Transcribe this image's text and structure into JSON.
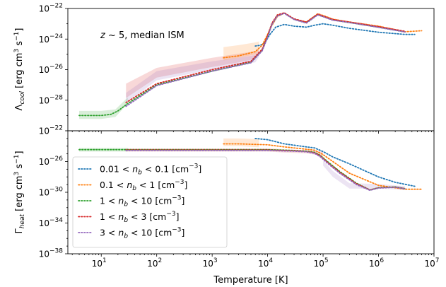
{
  "chart_data": {
    "type": "line",
    "xlabel": "Temperature [K]",
    "x_scale": "log",
    "xlim": [
      2.5,
      10000000
    ],
    "x_ticks": [
      {
        "value": 10,
        "label": "10",
        "exp": "1"
      },
      {
        "value": 100,
        "label": "10",
        "exp": "2"
      },
      {
        "value": 1000,
        "label": "10",
        "exp": "3"
      },
      {
        "value": 10000,
        "label": "10",
        "exp": "4"
      },
      {
        "value": 100000,
        "label": "10",
        "exp": "5"
      },
      {
        "value": 1000000,
        "label": "10",
        "exp": "6"
      },
      {
        "value": 10000000,
        "label": "10",
        "exp": "7"
      }
    ],
    "legend_placement": "lower-left of bottom panel",
    "series_legend": [
      {
        "label_pre": "0.01 < ",
        "var": "n",
        "sub": "b",
        "label_post": " < 0.1 [cm",
        "sup": "−3",
        "close": "]",
        "color": "#1f77b4"
      },
      {
        "label_pre": "0.1 < ",
        "var": "n",
        "sub": "b",
        "label_post": " < 1 [cm",
        "sup": "−3",
        "close": "]",
        "color": "#ff7f0e"
      },
      {
        "label_pre": "1 < ",
        "var": "n",
        "sub": "b",
        "label_post": " < 10 [cm",
        "sup": "−3",
        "close": "]",
        "color": "#2ca02c"
      },
      {
        "label_pre": "1 < ",
        "var": "n",
        "sub": "b",
        "label_post": " < 3 [cm",
        "sup": "−3",
        "close": "]",
        "color": "#d62728"
      },
      {
        "label_pre": "3 < ",
        "var": "n",
        "sub": "b",
        "label_post": " < 10 [cm",
        "sup": "−3",
        "close": "]",
        "color": "#9467bd"
      }
    ],
    "panels": [
      {
        "id": "cooling",
        "ylabel_symbol": "Λ",
        "ylabel_sub": "cool",
        "ylabel_units": " [erg cm",
        "ylabel_sup1": "3",
        "ylabel_mid": " s",
        "ylabel_sup2": "−1",
        "ylabel_close": "]",
        "y_scale": "log",
        "ylim": [
          1e-22,
          1e-30
        ],
        "y_ticks": [
          {
            "value": 1e-22,
            "label": "10",
            "exp": "−22"
          },
          {
            "value": 1e-24,
            "label": "10",
            "exp": "−24"
          },
          {
            "value": 1e-26,
            "label": "10",
            "exp": "−26"
          },
          {
            "value": 1e-28,
            "label": "10",
            "exp": "−28"
          }
        ],
        "annotation": {
          "pre": "z",
          "mid": " ~ 5, median ISM"
        },
        "bands": [
          {
            "color": "#2ca02c",
            "x": [
              4,
              10,
              18,
              30
            ],
            "lo": [
              6e-30,
              6e-30,
              8e-30,
              6e-29
            ],
            "hi": [
              2e-29,
              2e-29,
              2.5e-29,
              1.5e-28
            ]
          },
          {
            "color": "#d62728",
            "x": [
              28,
              100,
              1000,
              3000,
              6000,
              7000
            ],
            "lo": [
              1.4e-28,
              3e-27,
              1.5e-26,
              3e-26,
              5e-26,
              1e-25
            ],
            "hi": [
              1.2e-27,
              1.3e-26,
              6e-26,
              1.1e-25,
              1.6e-25,
              2.5e-25
            ]
          },
          {
            "color": "#9467bd",
            "x": [
              28,
              100,
              1000,
              3000,
              6000,
              7000
            ],
            "lo": [
              6e-29,
              2e-27,
              1e-26,
              2e-26,
              3e-26,
              7e-26
            ],
            "hi": [
              3e-28,
              8e-27,
              3.5e-26,
              6e-26,
              9e-26,
              1.6e-25
            ]
          },
          {
            "color": "#ff7f0e",
            "x": [
              1600,
              3000,
              6000,
              7000
            ],
            "lo": [
              4e-26,
              6e-26,
              1e-25,
              1.5e-25
            ],
            "hi": [
              3e-25,
              4e-25,
              6e-25,
              7e-25
            ]
          }
        ],
        "series": [
          {
            "color": "#1f77b4",
            "x": [
              6000,
              7500,
              9000,
              11000,
              14000,
              20000,
              30000,
              50000,
              70000,
              100000,
              150000,
              300000,
              1000000,
              3000000,
              4500000
            ],
            "y": [
              3.5e-25,
              4e-25,
              6e-25,
              2e-24,
              6e-24,
              9e-24,
              7e-24,
              6e-24,
              8e-24,
              1e-23,
              8e-24,
              5e-24,
              2.8e-24,
              2e-24,
              2e-24
            ]
          },
          {
            "color": "#ff7f0e",
            "x": [
              1600,
              3000,
              6000,
              8000,
              10000,
              12000,
              15000,
              20000,
              30000,
              50000,
              80000,
              100000,
              150000,
              300000,
              1000000,
              3000000,
              6000000
            ],
            "y": [
              6e-26,
              8e-26,
              1.5e-25,
              4e-25,
              2e-24,
              8e-24,
              3e-23,
              5e-23,
              2e-23,
              1.3e-23,
              4.5e-23,
              3.5e-23,
              2e-23,
              1.3e-23,
              7e-24,
              3e-24,
              3.5e-24
            ]
          },
          {
            "color": "#2ca02c",
            "x": [
              4,
              10,
              15,
              20,
              30,
              100,
              1000,
              5000,
              8000,
              10000,
              12000,
              15000,
              20000,
              30000,
              50000,
              80000,
              100000,
              150000,
              300000,
              1000000,
              3000000
            ],
            "y": [
              1e-29,
              1e-29,
              1.2e-29,
              2e-29,
              6e-29,
              1e-27,
              8e-27,
              3e-26,
              2e-25,
              1.5e-24,
              1e-23,
              3.5e-23,
              5e-23,
              2e-23,
              1.2e-23,
              4e-23,
              3e-23,
              1.8e-23,
              1.2e-23,
              6e-24,
              3e-24
            ]
          },
          {
            "color": "#d62728",
            "x": [
              28,
              100,
              1000,
              5000,
              8000,
              10000,
              12000,
              15000,
              20000,
              30000,
              50000,
              80000,
              100000,
              150000,
              300000,
              1000000,
              3000000
            ],
            "y": [
              7e-29,
              1.2e-27,
              1e-26,
              3.5e-26,
              2.2e-25,
              1.7e-24,
              1.1e-23,
              3.8e-23,
              5.2e-23,
              2.1e-23,
              1.3e-23,
              4.2e-23,
              3.2e-23,
              1.9e-23,
              1.3e-23,
              6.5e-24,
              3.2e-24
            ]
          },
          {
            "color": "#9467bd",
            "x": [
              28,
              100,
              1000,
              5000,
              8000,
              10000,
              12000,
              15000,
              20000,
              30000,
              50000,
              80000,
              100000,
              150000,
              300000,
              1000000,
              3000000
            ],
            "y": [
              4e-29,
              9e-28,
              8e-27,
              2.8e-26,
              1.7e-25,
              1.3e-24,
              9e-24,
              3.2e-23,
              4.8e-23,
              1.9e-23,
              1.1e-23,
              3.8e-23,
              2.9e-23,
              1.7e-23,
              1.2e-23,
              5.8e-24,
              2.9e-24
            ]
          }
        ]
      },
      {
        "id": "heating",
        "ylabel_symbol": "Γ",
        "ylabel_sub": "heat",
        "ylabel_units": " [erg cm",
        "ylabel_sup1": "3",
        "ylabel_mid": " s",
        "ylabel_sup2": "−1",
        "ylabel_close": "]",
        "y_scale": "log",
        "ylim": [
          1e-22,
          1e-38
        ],
        "y_ticks": [
          {
            "value": 1e-22,
            "label": "10",
            "exp": "−22"
          },
          {
            "value": 1e-26,
            "label": "10",
            "exp": "−26"
          },
          {
            "value": 1e-30,
            "label": "10",
            "exp": "−30"
          },
          {
            "value": 1e-34,
            "label": "10",
            "exp": "−34"
          },
          {
            "value": 1e-38,
            "label": "10",
            "exp": "−38"
          }
        ],
        "bands": [
          {
            "color": "#2ca02c",
            "x": [
              4,
              30
            ],
            "lo": [
              2e-25,
              2e-25
            ],
            "hi": [
              6e-25,
              6e-25
            ]
          },
          {
            "color": "#d62728",
            "x": [
              28,
              100,
              1000,
              3000,
              7000,
              10000,
              20000,
              50000,
              100000
            ],
            "lo": [
              2e-25,
              2e-25,
              2e-25,
              2e-25,
              2e-25,
              2e-25,
              1.5e-25,
              1.2e-25,
              5e-26
            ],
            "hi": [
              5e-25,
              5e-25,
              5e-25,
              5e-25,
              5e-25,
              5e-25,
              4e-25,
              3e-25,
              2e-25
            ]
          },
          {
            "color": "#9467bd",
            "x": [
              100000,
              150000,
              300000,
              1000000,
              3000000
            ],
            "lo": [
              3e-27,
              1e-28,
              3e-30,
              3e-30,
              2e-30
            ],
            "hi": [
              1.5e-26,
              6e-28,
              1.5e-29,
              1.2e-29,
              6e-30
            ]
          },
          {
            "color": "#ff7f0e",
            "x": [
              1600,
              3000,
              7000
            ],
            "lo": [
              1e-24,
              1e-24,
              7e-25
            ],
            "hi": [
              1e-23,
              1e-23,
              8e-24
            ]
          }
        ],
        "series": [
          {
            "color": "#1f77b4",
            "x": [
              6000,
              10000,
              20000,
              50000,
              70000,
              100000,
              150000,
              300000,
              1000000,
              2000000,
              4500000
            ],
            "y": [
              1e-23,
              7e-24,
              2e-24,
              8e-25,
              6e-25,
              2e-25,
              4e-26,
              5e-27,
              1e-28,
              2e-29,
              6e-30
            ]
          },
          {
            "color": "#ff7f0e",
            "x": [
              1600,
              3000,
              10000,
              20000,
              50000,
              70000,
              100000,
              150000,
              300000,
              1000000,
              3000000,
              6000000
            ],
            "y": [
              2e-24,
              2e-24,
              1.5e-24,
              8e-25,
              4e-25,
              3e-25,
              8e-26,
              1e-26,
              3e-28,
              8e-30,
              2.5e-30,
              2.5e-30
            ]
          },
          {
            "color": "#2ca02c",
            "x": [
              4,
              30,
              100,
              1000,
              5000,
              10000,
              30000,
              50000,
              70000,
              90000,
              120000,
              200000,
              400000,
              700000,
              1000000,
              2000000,
              3000000
            ],
            "y": [
              3.5e-25,
              3.5e-25,
              3.5e-25,
              3.5e-25,
              3.5e-25,
              3.5e-25,
              2.7e-25,
              2.2e-25,
              1.6e-25,
              6e-26,
              1e-26,
              5e-28,
              1.5e-29,
              2e-30,
              4e-30,
              5e-30,
              3e-30
            ]
          },
          {
            "color": "#d62728",
            "x": [
              28,
              100,
              1000,
              5000,
              10000,
              30000,
              50000,
              70000,
              90000,
              120000,
              200000,
              400000,
              700000,
              1000000,
              2000000,
              3000000
            ],
            "y": [
              3.2e-25,
              3.2e-25,
              3.2e-25,
              3.2e-25,
              3.2e-25,
              2.5e-25,
              2e-25,
              1.4e-25,
              5e-26,
              8e-27,
              4e-28,
              1.3e-29,
              2e-30,
              3.8e-30,
              4.8e-30,
              3e-30
            ]
          },
          {
            "color": "#9467bd",
            "x": [
              28,
              100,
              1000,
              5000,
              10000,
              30000,
              50000,
              70000,
              90000,
              120000,
              200000,
              400000,
              700000,
              1000000,
              2000000,
              3000000
            ],
            "y": [
              2.8e-25,
              2.8e-25,
              2.8e-25,
              2.8e-25,
              2.8e-25,
              2.2e-25,
              1.8e-25,
              1.2e-25,
              4e-26,
              6e-27,
              3e-28,
              1e-29,
              1.8e-30,
              3.5e-30,
              4.5e-30,
              2.8e-30
            ]
          }
        ]
      }
    ]
  }
}
